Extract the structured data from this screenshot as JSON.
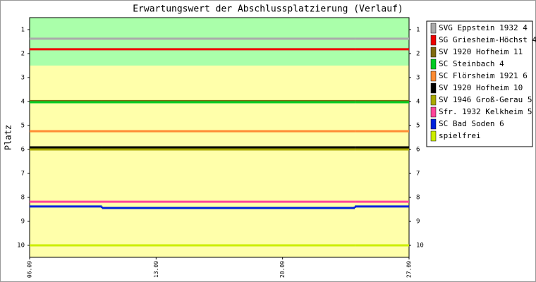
{
  "chart_data": {
    "type": "step-line",
    "title": "Erwartungswert der Abschlussplatzierung (Verlauf)",
    "y_label": "Platz",
    "x": [
      "06.09",
      "10.09",
      "24.09"
    ],
    "xlim": [
      "06.09",
      "27.09"
    ],
    "xticks": [
      "06.09",
      "13.09",
      "20.09",
      "27.09"
    ],
    "ylim": [
      0.5,
      10.5
    ],
    "y_inverted": true,
    "yticks": [
      1,
      2,
      3,
      4,
      5,
      6,
      7,
      8,
      9,
      10
    ],
    "bands": [
      {
        "from": 0.5,
        "to": 2.5,
        "color": "#aaffaa"
      },
      {
        "from": 2.5,
        "to": 10.5,
        "color": "#ffffaa"
      }
    ],
    "legend": "right",
    "series": [
      {
        "name": "SVG Eppstein 1932 4",
        "color": "#aaaaaa",
        "values": [
          1.38,
          1.38,
          1.38
        ]
      },
      {
        "name": "SG Griesheim-Höchst 4",
        "color": "#ee0000",
        "values": [
          1.82,
          1.82,
          1.82
        ]
      },
      {
        "name": "SV 1920 Hofheim 11",
        "color": "#806a10",
        "values": [
          3.98,
          3.98,
          3.98
        ]
      },
      {
        "name": "SC Steinbach 4",
        "color": "#00cc22",
        "values": [
          4.03,
          4.03,
          4.03
        ]
      },
      {
        "name": "SC Flörsheim 1921 6",
        "color": "#ff8c33",
        "values": [
          5.24,
          5.24,
          5.24
        ]
      },
      {
        "name": "SV 1920 Hofheim 10",
        "color": "#000000",
        "values": [
          5.91,
          5.91,
          5.91
        ]
      },
      {
        "name": "SV 1946 Groß-Gerau 5",
        "color": "#aaaa00",
        "values": [
          6.0,
          6.0,
          6.0
        ]
      },
      {
        "name": "Sfr. 1932 Kelkheim 5",
        "color": "#ff4499",
        "values": [
          8.18,
          8.18,
          8.18
        ]
      },
      {
        "name": "SC Bad Soden 6",
        "color": "#0022dd",
        "values": [
          8.38,
          8.44,
          8.38
        ]
      },
      {
        "name": "spielfrei",
        "color": "#ccee00",
        "values": [
          10.0,
          10.0,
          10.0
        ]
      }
    ]
  }
}
